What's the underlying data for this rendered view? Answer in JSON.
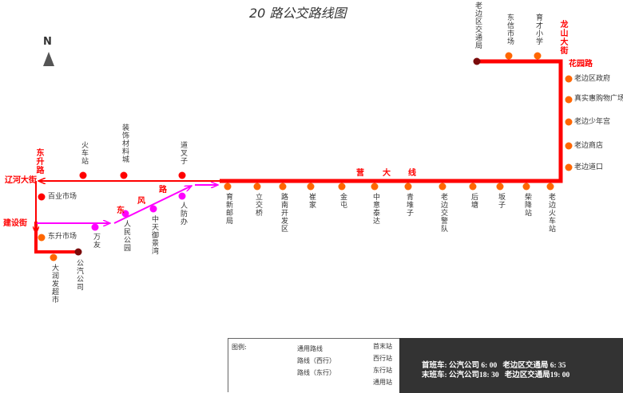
{
  "title": "20 路公交路线图",
  "compass": "N",
  "colors": {
    "common_route": "#ff0000",
    "westbound": "#ff0000",
    "eastbound": "#ff00ff",
    "terminal": "#7a0a0a",
    "west_stop": "#ff0000",
    "east_stop": "#ff00ff",
    "common_stop": "#ff6600"
  },
  "roads": [
    "东升路",
    "辽河大街",
    "建设街",
    "东",
    "风",
    "路",
    "营",
    "大",
    "线",
    "龙山大街",
    "花园路"
  ],
  "stations": {
    "terminals": [
      "公汽公司",
      "老边区交通局"
    ],
    "west": [
      "火车站",
      "装饰材料城",
      "道叉子",
      "百业市场"
    ],
    "east": [
      "万友",
      "人民公园",
      "中天御景湾",
      "人防办"
    ],
    "common": [
      "东升市场",
      "大润发超市",
      "育新邮局",
      "立交桥",
      "路南开发区",
      "崔家",
      "金屯",
      "中意泰达",
      "青堆子",
      "老边交警队",
      "后塘",
      "坂子",
      "柴降站",
      "老边火车站",
      "老边区政府",
      "真实惠购物广场",
      "老边少年宫",
      "老边商店",
      "老边道口",
      "东信市场",
      "育才小学"
    ]
  },
  "legend": {
    "title": "图例:",
    "items": [
      "通用路线",
      "路线（西行）",
      "路线（东行）",
      "首末站",
      "西行站",
      "东行站",
      "通用站"
    ]
  },
  "schedule": {
    "first": "首班车: 公汽公司 6: 00   老边区交通局 6: 35",
    "last": "末班车: 公汽公司18: 30   老边区交通局19: 00"
  }
}
